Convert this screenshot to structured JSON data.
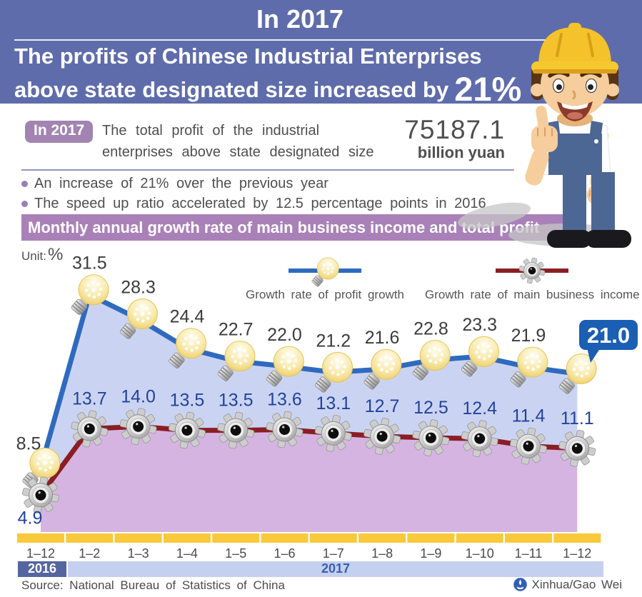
{
  "header": {
    "year_title": "In 2017",
    "headline_line1": "The profits of Chinese Industrial Enterprises",
    "headline_line2": "above state designated size increased by",
    "headline_percent": "21%"
  },
  "summary": {
    "badge": "In 2017",
    "text_line1": "The total profit of the industrial",
    "text_line2": "enterprises above state designated size",
    "value": "75187.1",
    "value_unit": "billion yuan",
    "bullets": [
      "An increase of 21% over the previous year",
      "The speed up ratio accelerated by 12.5 percentage points in 2016"
    ]
  },
  "banner": {
    "title": "Monthly annual growth rate of main business income and total profit"
  },
  "unit": {
    "label": "Unit:",
    "symbol": "%"
  },
  "chart_data": {
    "type": "line",
    "title": "Monthly annual growth rate of main business income and total profit",
    "ylabel": "Unit: %",
    "ylim": [
      0,
      35
    ],
    "grid": false,
    "legend_position": "top",
    "categories": [
      "1–12",
      "1–2",
      "1–3",
      "1–4",
      "1–5",
      "1–6",
      "1–7",
      "1–8",
      "1–9",
      "1–10",
      "1–11",
      "1–12"
    ],
    "series": [
      {
        "name": "Growth rate of profit growth",
        "marker": "lightbulb",
        "color": "#2e6abe",
        "fill": "#cad4f2",
        "label_color": "#3b3b3b",
        "values": [
          8.5,
          31.5,
          28.3,
          24.4,
          22.7,
          22.0,
          21.2,
          21.6,
          22.8,
          23.3,
          21.9,
          21.0
        ]
      },
      {
        "name": "Growth rate of main business income",
        "marker": "gear",
        "color": "#8a1e24",
        "fill": "#d5b4e2",
        "label_color": "#23429b",
        "values": [
          4.9,
          13.7,
          14.0,
          13.5,
          13.5,
          13.6,
          13.1,
          12.7,
          12.5,
          12.4,
          11.4,
          11.1
        ]
      }
    ],
    "highlight": {
      "series": 0,
      "index": 11,
      "label": "21.0",
      "color": "#1a5fb4",
      "text_color": "#ffffff"
    },
    "x_axis_years": [
      {
        "label": "2016",
        "bar_color": "#55659f",
        "text_color": "#ffffff"
      },
      {
        "label": "2017",
        "bar_color": "#c5d0ee",
        "text_color": "#3a5fb0"
      }
    ],
    "tick_bar_color": "#f9c93c"
  },
  "footer": {
    "source": "Source: National Bureau of Statistics of China",
    "credit": "Xinhua/Gao Wei"
  }
}
